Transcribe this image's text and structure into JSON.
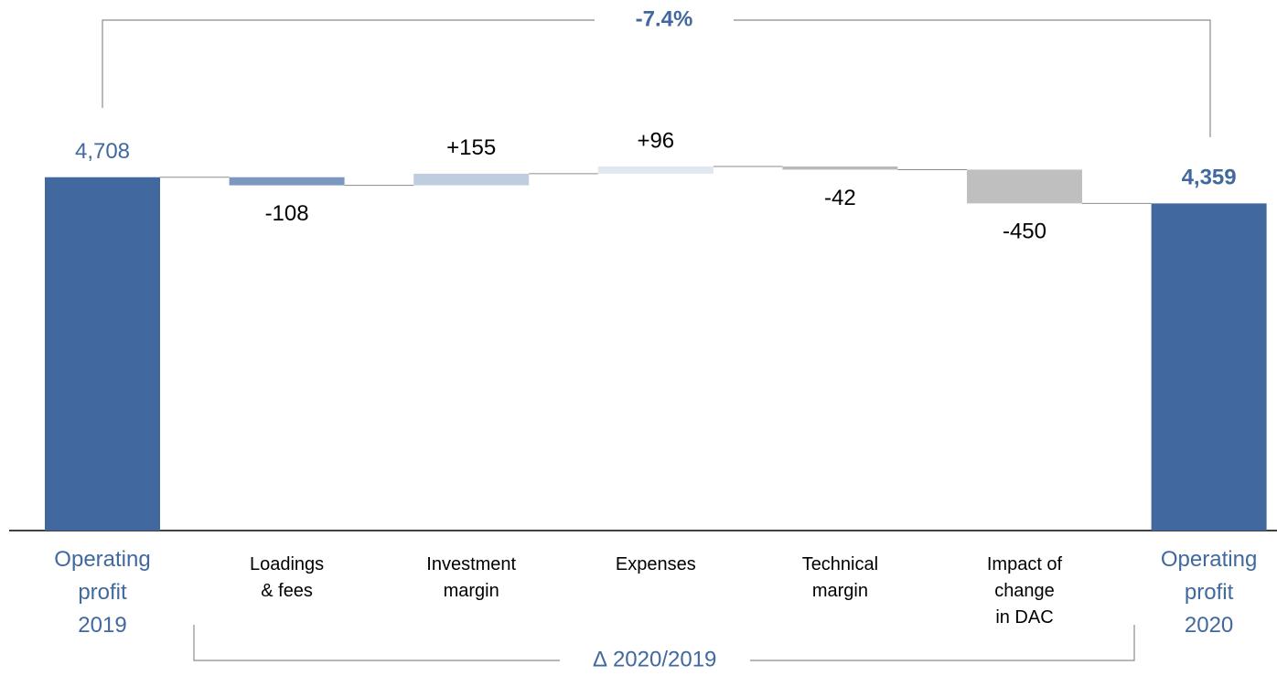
{
  "chart_data": {
    "type": "waterfall",
    "categories": [
      "Operating\nprofit\n2019",
      "Loadings\n& fees",
      "Investment\nmargin",
      "Expenses",
      "Technical\nmargin",
      "Impact of\nchange\nin DAC",
      "Operating\nprofit\n2020"
    ],
    "measures": [
      "total",
      "relative",
      "relative",
      "relative",
      "relative",
      "relative",
      "total"
    ],
    "values": [
      4708,
      -108,
      155,
      96,
      -42,
      -450,
      4359
    ],
    "value_labels": [
      "4,708",
      "-108",
      "+155",
      "+96",
      "-42",
      "-450",
      "4,359"
    ],
    "colors": [
      "#41699f",
      "#7c98c1",
      "#c0cde0",
      "#e1e7f0",
      "#b9b9b9",
      "#bfbfbf",
      "#41699f"
    ],
    "annotations": {
      "top": "-7.4%",
      "bottom": "∆ 2020/2019"
    }
  }
}
